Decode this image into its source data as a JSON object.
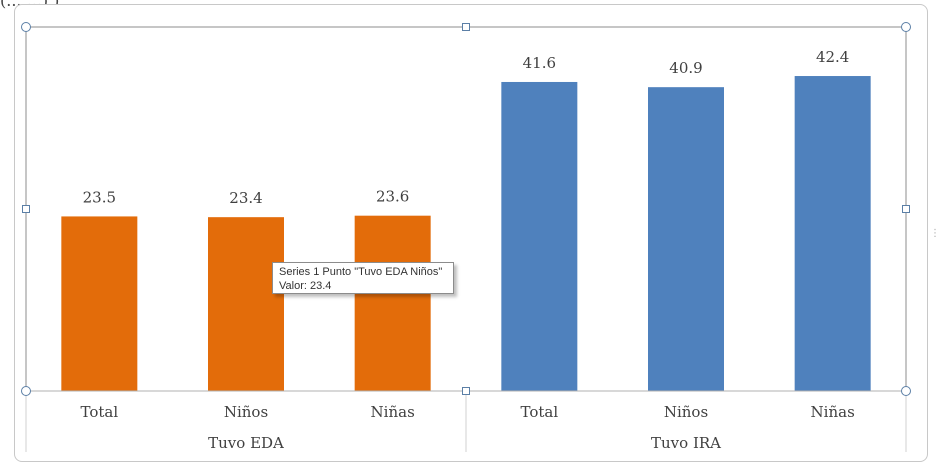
{
  "header": {
    "cut_text": "(...    ...),)",
    "dots": "...."
  },
  "right_edge": "⋮",
  "chart_data": {
    "type": "bar",
    "categories": [
      "Total",
      "Niños",
      "Niñas",
      "Total",
      "Niños",
      "Niñas"
    ],
    "groups": [
      {
        "label": "Tuvo EDA",
        "start": 0,
        "count": 3
      },
      {
        "label": "Tuvo IRA",
        "start": 3,
        "count": 3
      }
    ],
    "values": [
      23.5,
      23.4,
      23.6,
      41.6,
      40.9,
      42.4
    ],
    "value_labels": [
      "23.5",
      "23.4",
      "23.6",
      "41.6",
      "40.9",
      "42.4"
    ],
    "colors": [
      "#e36c0a",
      "#e36c0a",
      "#e36c0a",
      "#4f81bd",
      "#4f81bd",
      "#4f81bd"
    ],
    "ylim": [
      0,
      49
    ],
    "grid": false,
    "legend": "none",
    "title": "",
    "xlabel": "",
    "ylabel": ""
  },
  "tooltip": {
    "line1": "Series 1 Punto \"Tuvo EDA Niños\"",
    "line2": "Valor: 23.4"
  }
}
